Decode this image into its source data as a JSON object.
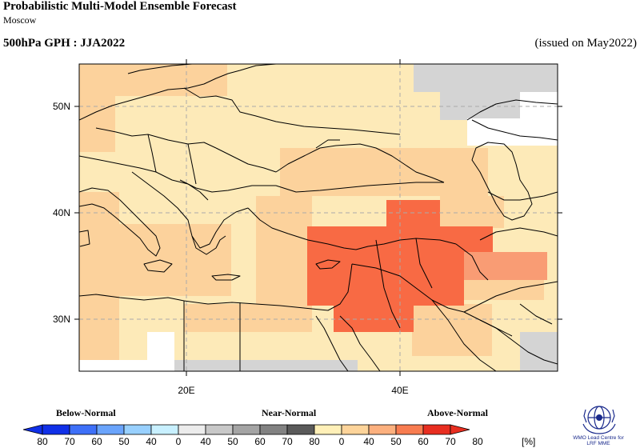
{
  "header": {
    "title": "Probabilistic Multi-Model Ensemble Forecast",
    "subtitle": "Moscow",
    "variable": "500hPa GPH : JJA2022",
    "issued": "(issued on May2022)"
  },
  "axes": {
    "lat_labels": [
      "50N",
      "40N",
      "30N"
    ],
    "lon_labels": [
      "20E",
      "40E"
    ]
  },
  "legend": {
    "groups": [
      "Below-Normal",
      "Near-Normal",
      "Above-Normal"
    ],
    "tick_labels": [
      "80",
      "70",
      "60",
      "50",
      "40",
      "0",
      "40",
      "50",
      "60",
      "70",
      "80",
      "0",
      "40",
      "50",
      "60",
      "70",
      "80"
    ],
    "unit": "[%]",
    "colors": {
      "below": [
        "#1030e8",
        "#3e70f8",
        "#6aa4fc",
        "#98d0fe",
        "#c8f0ff"
      ],
      "near": [
        "#ececec",
        "#c8c8c8",
        "#a4a4a4",
        "#828282",
        "#5a5a5a"
      ],
      "above": [
        "#fff0b8",
        "#fdd49a",
        "#fcb07e",
        "#f87c50",
        "#e82e20"
      ]
    }
  },
  "map": {
    "colors": {
      "above40": "#fdeab8",
      "above50": "#fcd29c",
      "above60": "#f99c74",
      "above70": "#f86a44",
      "near": "#d4d4d4",
      "white": "#ffffff",
      "coast": "#000000",
      "grid": "#aaaaaa"
    }
  },
  "logo": {
    "line1": "WMO Lead Centre for",
    "line2": "LRF MME"
  }
}
